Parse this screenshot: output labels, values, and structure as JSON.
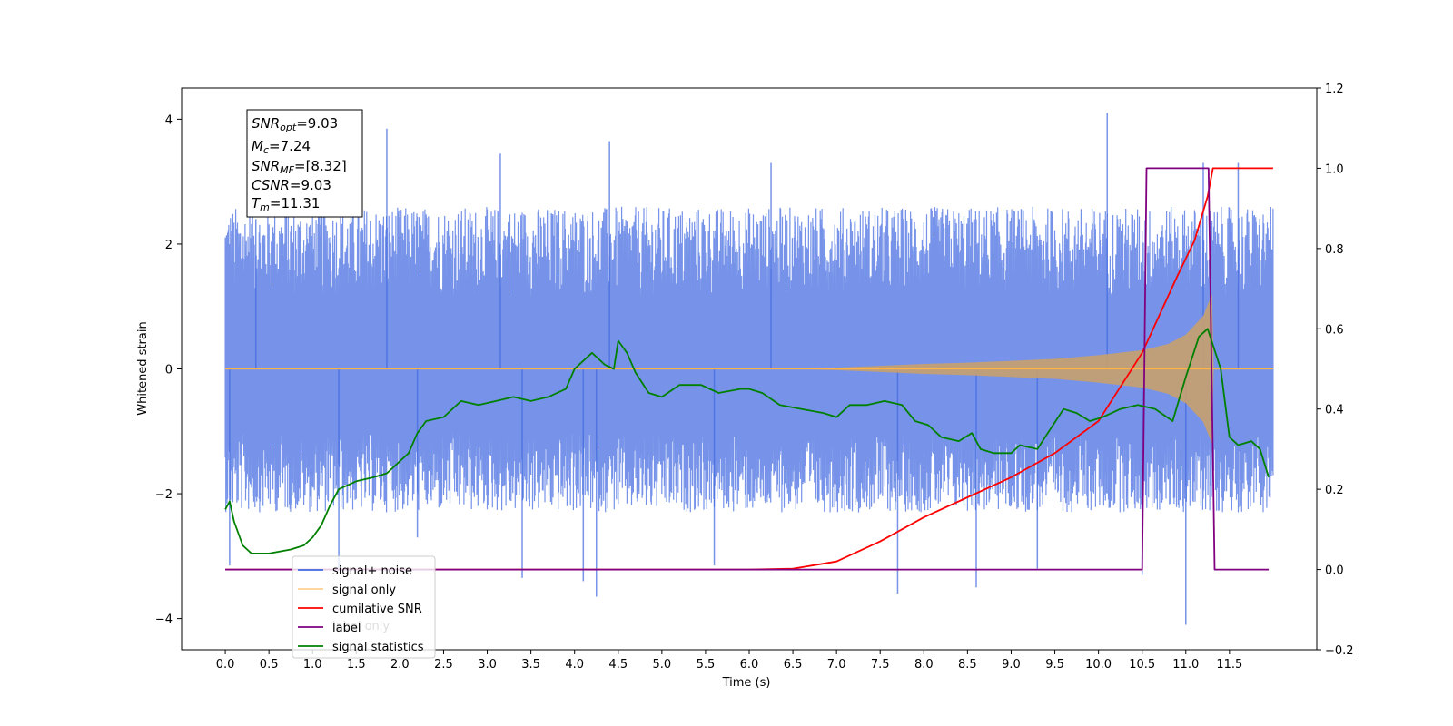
{
  "chart_data": {
    "type": "line",
    "xlabel": "Time (s)",
    "ylabel": "Whitened strain",
    "xlim": [
      -0.5,
      12.5
    ],
    "ylim": [
      -4.5,
      4.5
    ],
    "ylim_right": [
      -0.2,
      1.2
    ],
    "x_ticks": [
      "0.0",
      "0.5",
      "1.0",
      "1.5",
      "2.0",
      "2.5",
      "3.0",
      "3.5",
      "4.0",
      "4.5",
      "5.0",
      "5.5",
      "6.0",
      "6.5",
      "7.0",
      "7.5",
      "8.0",
      "8.5",
      "9.0",
      "9.5",
      "10.0",
      "10.5",
      "11.0",
      "11.5"
    ],
    "y_ticks_left": [
      "-4",
      "-2",
      "0",
      "2",
      "4"
    ],
    "y_ticks_right": [
      "-0.2",
      "0.0",
      "0.2",
      "0.4",
      "0.6",
      "0.8",
      "1.0",
      "1.2"
    ],
    "grid": false,
    "legend_position": "bottom-left",
    "legend": [
      {
        "label": "signal+ noise",
        "color": "#4169e1"
      },
      {
        "label": "signal only",
        "color": "#ffb347"
      },
      {
        "label": "cumilative SNR",
        "color": "#ff0000"
      },
      {
        "label": "label",
        "color": "#800080"
      },
      {
        "label": "signal statistics",
        "color": "#008000"
      }
    ],
    "legend_overlay_text": [
      "label only"
    ],
    "info_box": {
      "snr_opt": {
        "name": "SNR",
        "sub": "opt",
        "value": "=9.03"
      },
      "mc": {
        "name": "M",
        "sub": "c",
        "value": "=7.24"
      },
      "snr_mf": {
        "name": "SNR",
        "sub": "MF",
        "value": "=[8.32]"
      },
      "csnr": {
        "name": "CSNR",
        "value": "=9.03"
      },
      "tm": {
        "name": "T",
        "sub": "m",
        "value": "=11.31"
      }
    },
    "series": [
      {
        "name": "signal+ noise",
        "axis": "left",
        "color": "#4169e1",
        "x_range": [
          0.0,
          12.0
        ],
        "band_min": -2.3,
        "band_max": 2.6,
        "outliers": [
          [
            0.05,
            -3.15
          ],
          [
            0.35,
            2.4
          ],
          [
            1.3,
            -3.2
          ],
          [
            1.85,
            3.85
          ],
          [
            2.2,
            -2.7
          ],
          [
            3.4,
            -3.35
          ],
          [
            4.1,
            -3.4
          ],
          [
            4.25,
            -3.65
          ],
          [
            4.4,
            3.65
          ],
          [
            5.6,
            -3.15
          ],
          [
            7.7,
            -3.6
          ],
          [
            8.6,
            -3.5
          ],
          [
            9.3,
            -3.2
          ],
          [
            10.1,
            4.1
          ],
          [
            10.5,
            -3.3
          ],
          [
            11.0,
            -4.1
          ],
          [
            11.2,
            3.3
          ],
          [
            11.6,
            3.3
          ],
          [
            6.25,
            3.3
          ],
          [
            3.15,
            3.45
          ]
        ]
      },
      {
        "name": "signal only",
        "axis": "left",
        "color": "#ffb347",
        "envelope": [
          [
            0.0,
            0.0
          ],
          [
            6.5,
            0.0
          ],
          [
            7.0,
            0.02
          ],
          [
            7.5,
            0.05
          ],
          [
            8.0,
            0.08
          ],
          [
            8.5,
            0.1
          ],
          [
            9.0,
            0.13
          ],
          [
            9.5,
            0.16
          ],
          [
            10.0,
            0.22
          ],
          [
            10.5,
            0.3
          ],
          [
            10.8,
            0.4
          ],
          [
            11.0,
            0.55
          ],
          [
            11.2,
            0.85
          ],
          [
            11.3,
            1.2
          ],
          [
            11.32,
            0.0
          ],
          [
            12.0,
            0.0
          ]
        ]
      },
      {
        "name": "cumilative SNR",
        "axis": "right",
        "color": "#ff0000",
        "points": [
          [
            0.0,
            0.0
          ],
          [
            6.0,
            0.0
          ],
          [
            6.5,
            0.002
          ],
          [
            7.0,
            0.02
          ],
          [
            7.5,
            0.07
          ],
          [
            8.0,
            0.13
          ],
          [
            8.5,
            0.18
          ],
          [
            9.0,
            0.23
          ],
          [
            9.5,
            0.29
          ],
          [
            10.0,
            0.37
          ],
          [
            10.5,
            0.54
          ],
          [
            10.9,
            0.73
          ],
          [
            11.1,
            0.82
          ],
          [
            11.25,
            0.93
          ],
          [
            11.31,
            1.0
          ],
          [
            12.0,
            1.0
          ]
        ]
      },
      {
        "name": "label",
        "axis": "right",
        "color": "#800080",
        "points": [
          [
            0.0,
            0.0
          ],
          [
            10.5,
            0.0
          ],
          [
            10.55,
            1.0
          ],
          [
            11.26,
            1.0
          ],
          [
            11.33,
            0.0
          ],
          [
            11.95,
            0.0
          ]
        ]
      },
      {
        "name": "signal statistics",
        "axis": "right",
        "color": "#008000",
        "points": [
          [
            0.0,
            0.15
          ],
          [
            0.05,
            0.17
          ],
          [
            0.1,
            0.12
          ],
          [
            0.2,
            0.06
          ],
          [
            0.3,
            0.04
          ],
          [
            0.5,
            0.04
          ],
          [
            0.75,
            0.05
          ],
          [
            0.9,
            0.06
          ],
          [
            1.0,
            0.08
          ],
          [
            1.1,
            0.11
          ],
          [
            1.2,
            0.16
          ],
          [
            1.3,
            0.2
          ],
          [
            1.5,
            0.22
          ],
          [
            1.7,
            0.23
          ],
          [
            1.85,
            0.24
          ],
          [
            1.95,
            0.26
          ],
          [
            2.1,
            0.29
          ],
          [
            2.2,
            0.34
          ],
          [
            2.3,
            0.37
          ],
          [
            2.5,
            0.38
          ],
          [
            2.7,
            0.42
          ],
          [
            2.9,
            0.41
          ],
          [
            3.1,
            0.42
          ],
          [
            3.3,
            0.43
          ],
          [
            3.5,
            0.42
          ],
          [
            3.7,
            0.43
          ],
          [
            3.9,
            0.45
          ],
          [
            4.0,
            0.5
          ],
          [
            4.2,
            0.54
          ],
          [
            4.35,
            0.51
          ],
          [
            4.45,
            0.5
          ],
          [
            4.5,
            0.57
          ],
          [
            4.6,
            0.54
          ],
          [
            4.7,
            0.49
          ],
          [
            4.85,
            0.44
          ],
          [
            5.0,
            0.43
          ],
          [
            5.2,
            0.46
          ],
          [
            5.45,
            0.46
          ],
          [
            5.65,
            0.44
          ],
          [
            5.9,
            0.45
          ],
          [
            6.0,
            0.45
          ],
          [
            6.15,
            0.44
          ],
          [
            6.35,
            0.41
          ],
          [
            6.6,
            0.4
          ],
          [
            6.85,
            0.39
          ],
          [
            7.0,
            0.38
          ],
          [
            7.15,
            0.41
          ],
          [
            7.35,
            0.41
          ],
          [
            7.55,
            0.42
          ],
          [
            7.75,
            0.41
          ],
          [
            7.9,
            0.37
          ],
          [
            8.05,
            0.36
          ],
          [
            8.2,
            0.33
          ],
          [
            8.4,
            0.32
          ],
          [
            8.55,
            0.34
          ],
          [
            8.65,
            0.3
          ],
          [
            8.8,
            0.29
          ],
          [
            9.0,
            0.29
          ],
          [
            9.1,
            0.31
          ],
          [
            9.3,
            0.3
          ],
          [
            9.45,
            0.35
          ],
          [
            9.6,
            0.4
          ],
          [
            9.75,
            0.39
          ],
          [
            9.9,
            0.37
          ],
          [
            10.05,
            0.38
          ],
          [
            10.25,
            0.4
          ],
          [
            10.45,
            0.41
          ],
          [
            10.65,
            0.4
          ],
          [
            10.85,
            0.37
          ],
          [
            11.0,
            0.48
          ],
          [
            11.15,
            0.58
          ],
          [
            11.25,
            0.6
          ],
          [
            11.4,
            0.5
          ],
          [
            11.5,
            0.33
          ],
          [
            11.6,
            0.31
          ],
          [
            11.75,
            0.32
          ],
          [
            11.85,
            0.3
          ],
          [
            11.95,
            0.23
          ]
        ]
      }
    ]
  }
}
